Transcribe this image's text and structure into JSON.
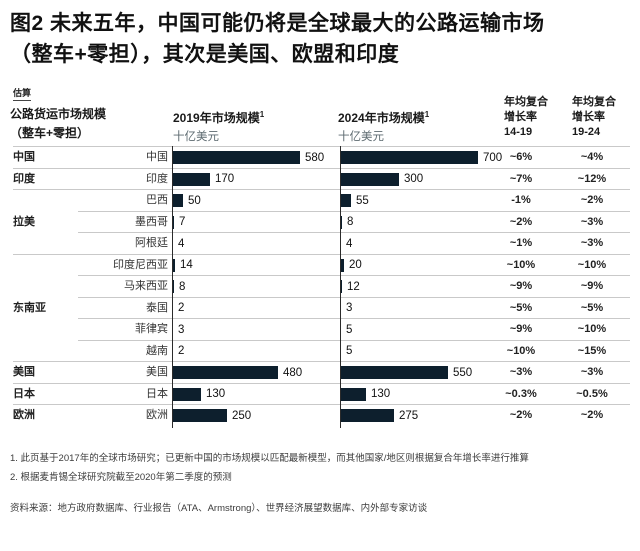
{
  "title": {
    "line1": "图2 未来五年，中国可能仍将是全球最大的公路运输市场",
    "line2": "（整车+零担），其次是美国、欧盟和印度"
  },
  "estimate_label": "估算",
  "header": {
    "region_col": {
      "line1": "公路货运市场规模",
      "line2": "（整车+零担）"
    },
    "col_2019": {
      "title": "2019年市场规模",
      "footnote_mark": "1",
      "unit": "十亿美元"
    },
    "col_2024": {
      "title": "2024年市场规模",
      "footnote_mark": "1",
      "unit": "十亿美元"
    },
    "col_cagr_14_19": {
      "line1": "年均复合",
      "line2": "增长率",
      "line3": "14-19"
    },
    "col_cagr_19_24": {
      "line1": "年均复合",
      "line2": "增长率",
      "line3": "19-24"
    }
  },
  "chart_data": {
    "type": "bar",
    "title": "图2 未来五年，中国可能仍将是全球最大的公路运输市场（整车+零担），其次是美国、欧盟和印度",
    "unit": "十亿美元",
    "bar_color": "#0d1f2d",
    "series_names": [
      "2019年市场规模",
      "2024年市场规模"
    ],
    "categories": [
      "中国",
      "印度",
      "巴西",
      "墨西哥",
      "阿根廷",
      "印度尼西亚",
      "马来西亚",
      "泰国",
      "菲律宾",
      "越南",
      "美国",
      "日本",
      "欧洲"
    ],
    "series": [
      {
        "name": "2019年市场规模",
        "values": [
          580,
          170,
          50,
          7,
          4,
          14,
          8,
          2,
          3,
          2,
          480,
          130,
          250
        ]
      },
      {
        "name": "2024年市场规模",
        "values": [
          700,
          300,
          55,
          8,
          4,
          20,
          12,
          3,
          5,
          5,
          550,
          130,
          275
        ]
      }
    ],
    "rows": [
      {
        "group": "中国",
        "country": "中国",
        "v2019": 580,
        "v2024": 700,
        "cagr_14_19": "~6%",
        "cagr_19_24": "~4%",
        "sep": "full"
      },
      {
        "group": "印度",
        "country": "印度",
        "v2019": 170,
        "v2024": 300,
        "cagr_14_19": "~7%",
        "cagr_19_24": "~12%",
        "sep": "full"
      },
      {
        "group": "",
        "country": "巴西",
        "v2019": 50,
        "v2024": 55,
        "cagr_14_19": "-1%",
        "cagr_19_24": "~2%",
        "sep": "indent"
      },
      {
        "group": "拉美",
        "country": "墨西哥",
        "v2019": 7,
        "v2024": 8,
        "cagr_14_19": "~2%",
        "cagr_19_24": "~3%",
        "sep": "indent"
      },
      {
        "group": "",
        "country": "阿根廷",
        "v2019": 4,
        "v2024": 4,
        "cagr_14_19": "~1%",
        "cagr_19_24": "~3%",
        "sep": "full"
      },
      {
        "group": "",
        "country": "印度尼西亚",
        "v2019": 14,
        "v2024": 20,
        "cagr_14_19": "~10%",
        "cagr_19_24": "~10%",
        "sep": "indent"
      },
      {
        "group": "",
        "country": "马来西亚",
        "v2019": 8,
        "v2024": 12,
        "cagr_14_19": "~9%",
        "cagr_19_24": "~9%",
        "sep": "indent"
      },
      {
        "group": "东南亚",
        "country": "泰国",
        "v2019": 2,
        "v2024": 3,
        "cagr_14_19": "~5%",
        "cagr_19_24": "~5%",
        "sep": "indent"
      },
      {
        "group": "",
        "country": "菲律宾",
        "v2019": 3,
        "v2024": 5,
        "cagr_14_19": "~9%",
        "cagr_19_24": "~10%",
        "sep": "indent"
      },
      {
        "group": "",
        "country": "越南",
        "v2019": 2,
        "v2024": 5,
        "cagr_14_19": "~10%",
        "cagr_19_24": "~15%",
        "sep": "full"
      },
      {
        "group": "美国",
        "country": "美国",
        "v2019": 480,
        "v2024": 550,
        "cagr_14_19": "~3%",
        "cagr_19_24": "~3%",
        "sep": "full"
      },
      {
        "group": "日本",
        "country": "日本",
        "v2019": 130,
        "v2024": 130,
        "cagr_14_19": "~0.3%",
        "cagr_19_24": "~0.5%",
        "sep": "full"
      },
      {
        "group": "欧洲",
        "country": "欧洲",
        "v2019": 250,
        "v2024": 275,
        "cagr_14_19": "~2%",
        "cagr_19_24": "~2%",
        "sep": "none"
      }
    ]
  },
  "footnotes": [
    "1. 此页基于2017年的全球市场研究；已更新中国的市场规模以匹配最新模型，而其他国家/地区则根据复合年增长率进行推算",
    "2. 根据麦肯锡全球研究院截至2020年第二季度的预测"
  ],
  "source": "资料来源：地方政府数据库、行业报告（ATA、Armstrong）、世界经济展望数据库、内外部专家访谈"
}
